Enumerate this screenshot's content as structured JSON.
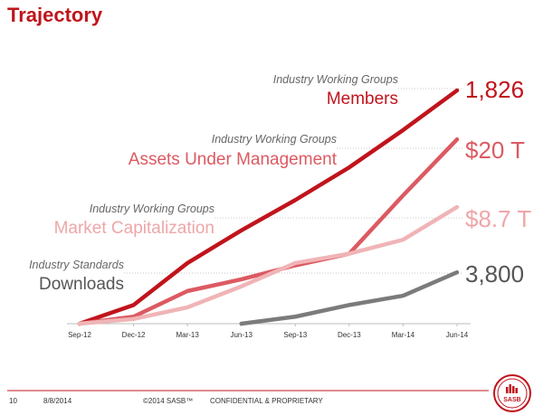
{
  "page": {
    "title": "Trajectory"
  },
  "chart_data": {
    "type": "line",
    "categories": [
      "Sep-12",
      "Dec-12",
      "Mar-13",
      "Jun-13",
      "Sep-13",
      "Dec-13",
      "Mar-14",
      "Jun-14"
    ],
    "grid": false,
    "legend": "inline-left",
    "series": [
      {
        "key": "members",
        "subtitle": "Industry Working Groups",
        "label": "Members",
        "end_label": "1,826",
        "color": "#c0141c",
        "label_color": "#c0141c",
        "end_color": "#c0141c",
        "values": [
          0,
          0.08,
          0.26,
          0.4,
          0.53,
          0.67,
          0.83,
          1.0
        ]
      },
      {
        "key": "aum",
        "subtitle": "Industry Working Groups",
        "label": "Assets Under Management",
        "end_label": "$20 T",
        "color": "#dc5a62",
        "label_color": "#dc5a62",
        "end_color": "#dc5a62",
        "values": [
          0,
          0.03,
          0.14,
          0.19,
          0.25,
          0.3,
          0.55,
          0.79
        ]
      },
      {
        "key": "mcap",
        "subtitle": "Industry Working Groups",
        "label": "Market Capitalization",
        "end_label": "$8.7 T",
        "color": "#f0b4b6",
        "label_color": "#eea6a8",
        "end_color": "#eea6a8",
        "values": [
          0,
          0.02,
          0.07,
          0.16,
          0.26,
          0.3,
          0.36,
          0.5
        ]
      },
      {
        "key": "downloads",
        "subtitle": "Industry Standards",
        "label": "Downloads",
        "end_label": "3,800",
        "color": "#7b7b7b",
        "label_color": "#555555",
        "end_color": "#555555",
        "values": [
          null,
          null,
          null,
          0,
          0.03,
          0.08,
          0.12,
          0.22
        ]
      }
    ]
  },
  "footer": {
    "page_number": "10",
    "date": "8/8/2014",
    "copyright": "©2014 SASB™",
    "confidential": "CONFIDENTIAL & PROPRIETARY",
    "accent_color": "#c0141c"
  },
  "logo": {
    "text": "SASB"
  }
}
